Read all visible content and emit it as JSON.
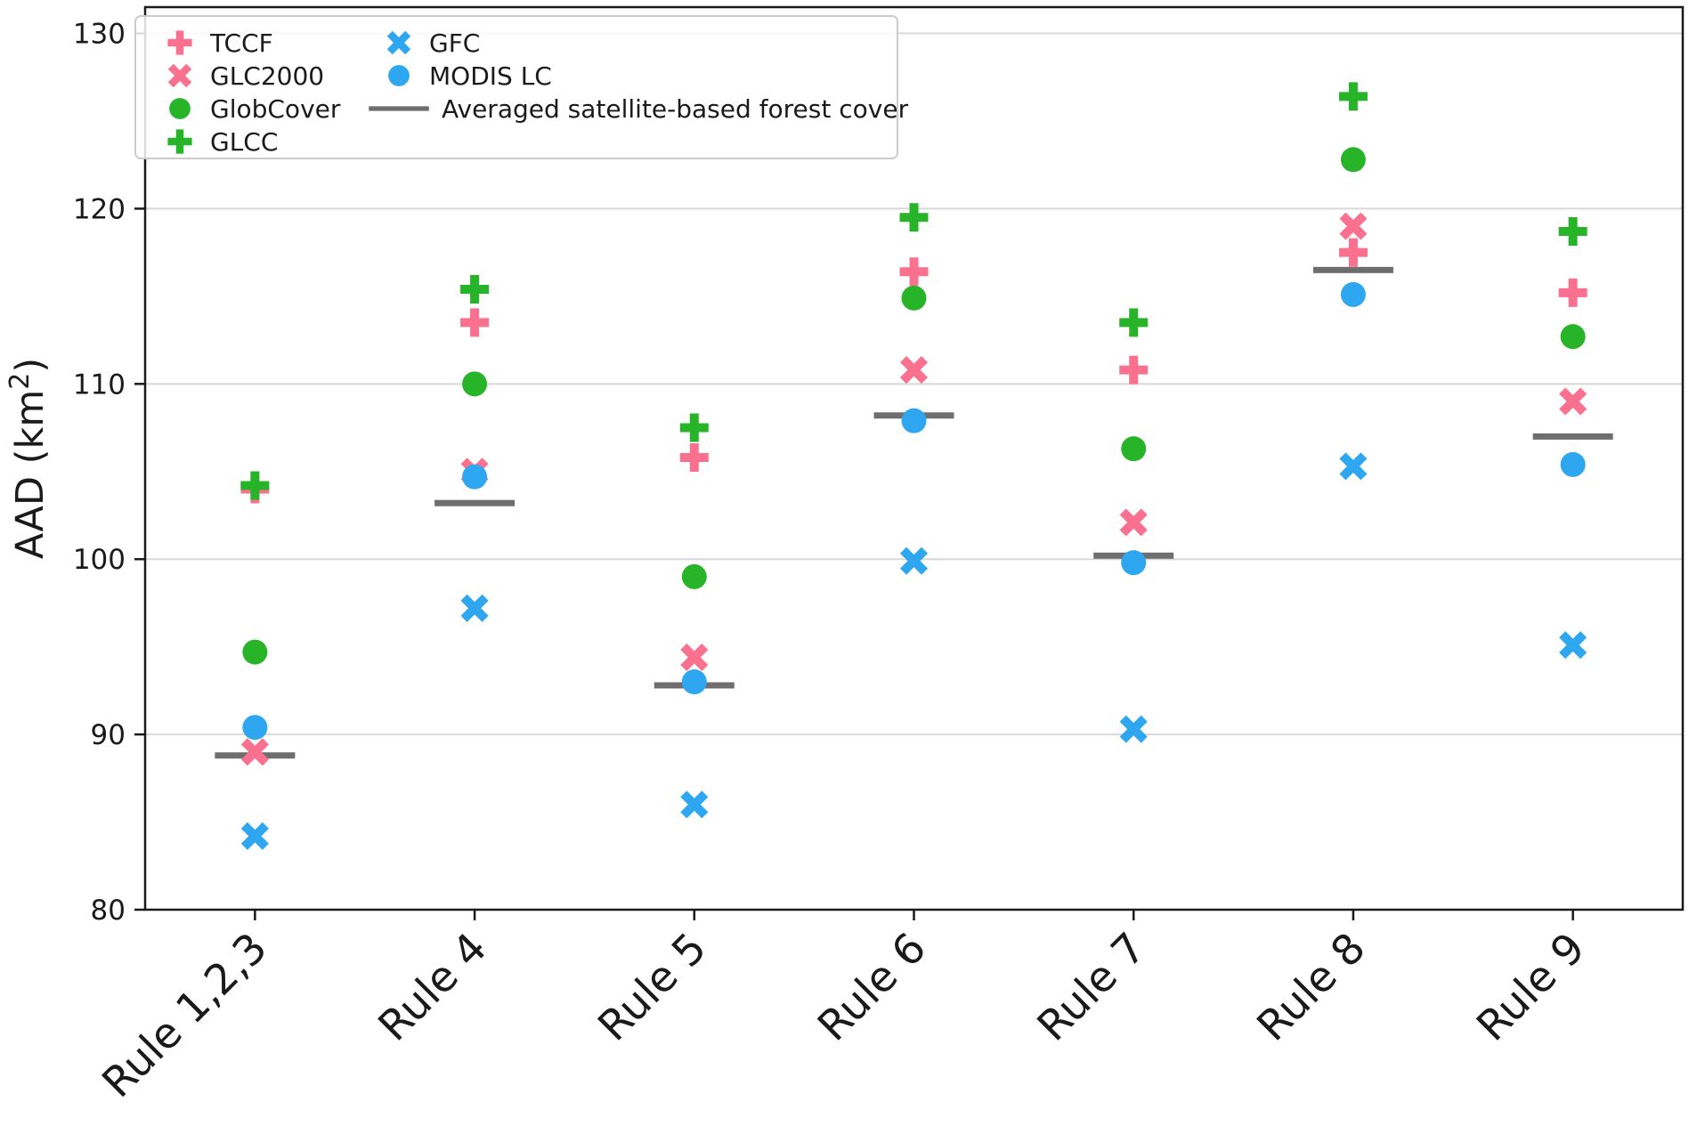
{
  "chart_data": {
    "type": "scatter",
    "title": "",
    "xlabel": "",
    "ylabel": "AAD (km²)",
    "ylabel_parts": {
      "pre": "AAD (km",
      "sup": "2",
      "post": ")"
    },
    "ylim": [
      80,
      131.5
    ],
    "yticks": [
      80,
      90,
      100,
      110,
      120,
      130
    ],
    "grid": true,
    "legend_position": "upper left",
    "categories": [
      "Rule 1,2,3",
      "Rule 4",
      "Rule 5",
      "Rule 6",
      "Rule 7",
      "Rule 8",
      "Rule 9"
    ],
    "series": [
      {
        "name": "TCCF",
        "marker": "plus",
        "color": "#f9718f",
        "values": [
          104.0,
          113.5,
          105.8,
          116.4,
          110.8,
          117.5,
          115.2
        ]
      },
      {
        "name": "GLC2000",
        "marker": "x",
        "color": "#f9718f",
        "values": [
          89.0,
          105.0,
          94.4,
          110.8,
          102.1,
          119.0,
          109.0
        ]
      },
      {
        "name": "GlobCover",
        "marker": "circle",
        "color": "#28b428",
        "values": [
          94.7,
          110.0,
          99.0,
          114.9,
          106.3,
          122.8,
          112.7
        ]
      },
      {
        "name": "GLCC",
        "marker": "plus",
        "color": "#28b428",
        "values": [
          104.2,
          115.4,
          107.5,
          119.5,
          113.5,
          126.4,
          118.7
        ]
      },
      {
        "name": "GFC",
        "marker": "x",
        "color": "#2ea6f0",
        "values": [
          84.2,
          97.2,
          86.0,
          99.9,
          90.3,
          105.3,
          95.1
        ]
      },
      {
        "name": "MODIS LC",
        "marker": "circle",
        "color": "#2ea6f0",
        "values": [
          90.4,
          104.7,
          93.0,
          107.9,
          99.8,
          115.1,
          105.4
        ]
      },
      {
        "name": "Averaged satellite-based forest cover",
        "marker": "hline",
        "color": "#6e6e6e",
        "values": [
          88.8,
          103.2,
          92.8,
          108.2,
          100.2,
          116.5,
          107.0
        ]
      }
    ],
    "colors": {
      "pink": "#f9718f",
      "green": "#28b428",
      "blue": "#2ea6f0",
      "gray_line": "#6e6e6e",
      "grid": "#d8d8d8",
      "axis": "#1a1a1a",
      "legend_border": "#cccccc"
    }
  }
}
